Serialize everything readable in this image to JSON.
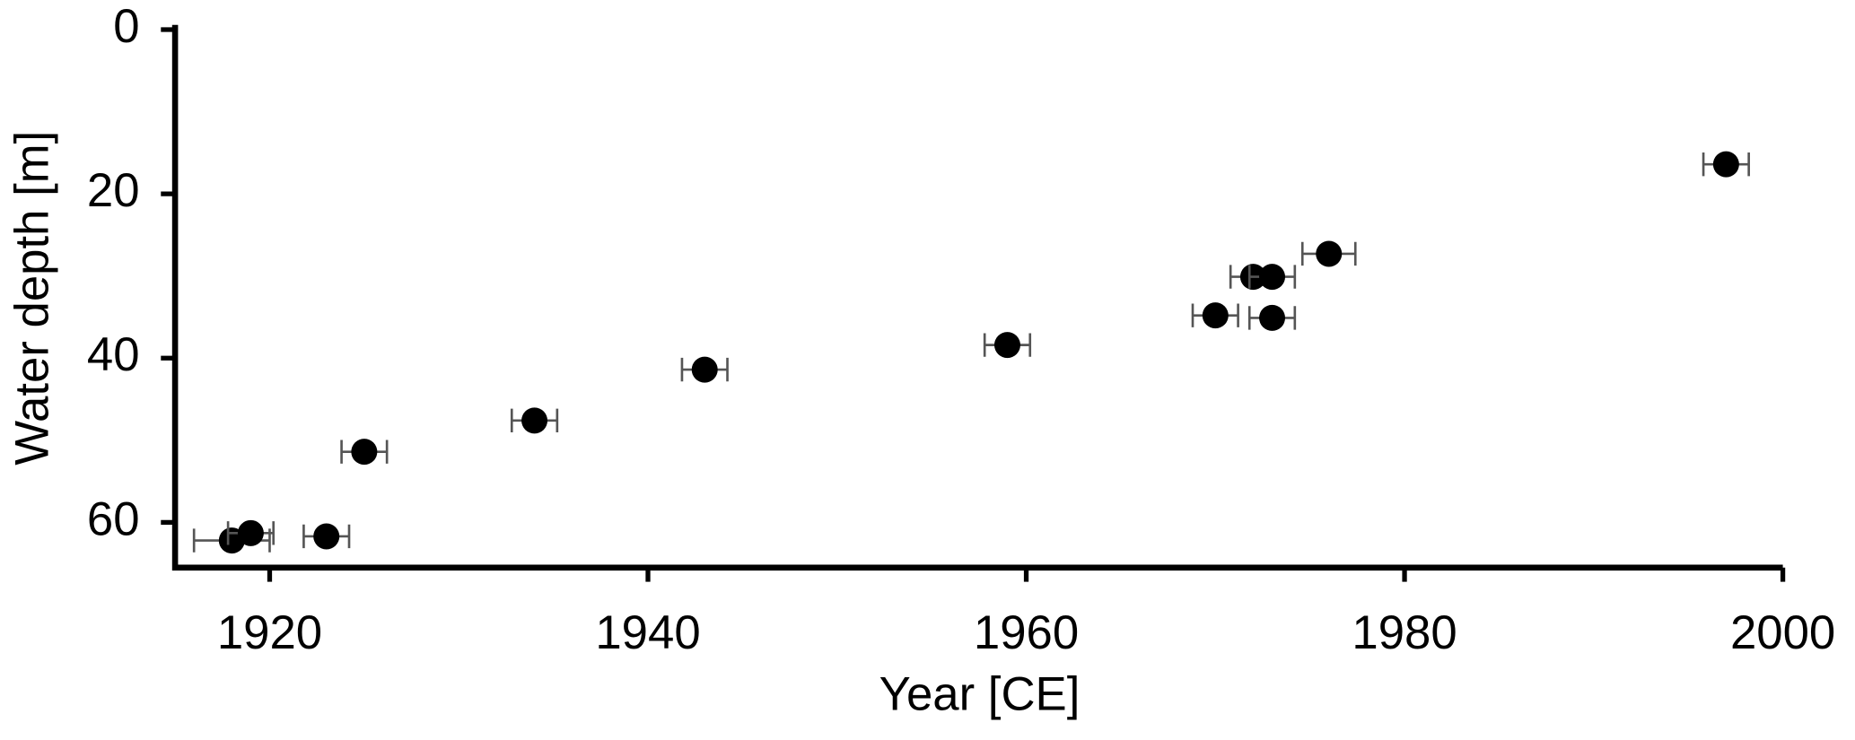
{
  "chart_data": {
    "type": "scatter",
    "xlabel": "Year [CE]",
    "ylabel": "Water depth [m]",
    "xlim": [
      1915,
      2000
    ],
    "xticks": [
      1920,
      1940,
      1960,
      1980,
      2000
    ],
    "ylim": [
      0,
      65.5
    ],
    "yticks": [
      0,
      20,
      40,
      60
    ],
    "y_inverted": true,
    "series": [
      {
        "color": "#000000",
        "errcolor": "#555555",
        "x": [
          1918,
          1919,
          1923,
          1925,
          1934,
          1943,
          1959,
          1970,
          1972,
          1973,
          1973,
          1976,
          1997
        ],
        "values": [
          62.2,
          61.3,
          61.7,
          51.4,
          47.6,
          41.4,
          38.4,
          34.8,
          30.1,
          30.1,
          35.1,
          27.3,
          16.4
        ],
        "xerr": [
          2,
          1.2,
          1.2,
          1.2,
          1.2,
          1.2,
          1.2,
          1.2,
          1.2,
          1.2,
          1.2,
          1.4,
          1.2
        ],
        "yerr": [
          1,
          1,
          1,
          1,
          1,
          1,
          1,
          1,
          1,
          1,
          1,
          1,
          1
        ]
      }
    ]
  }
}
